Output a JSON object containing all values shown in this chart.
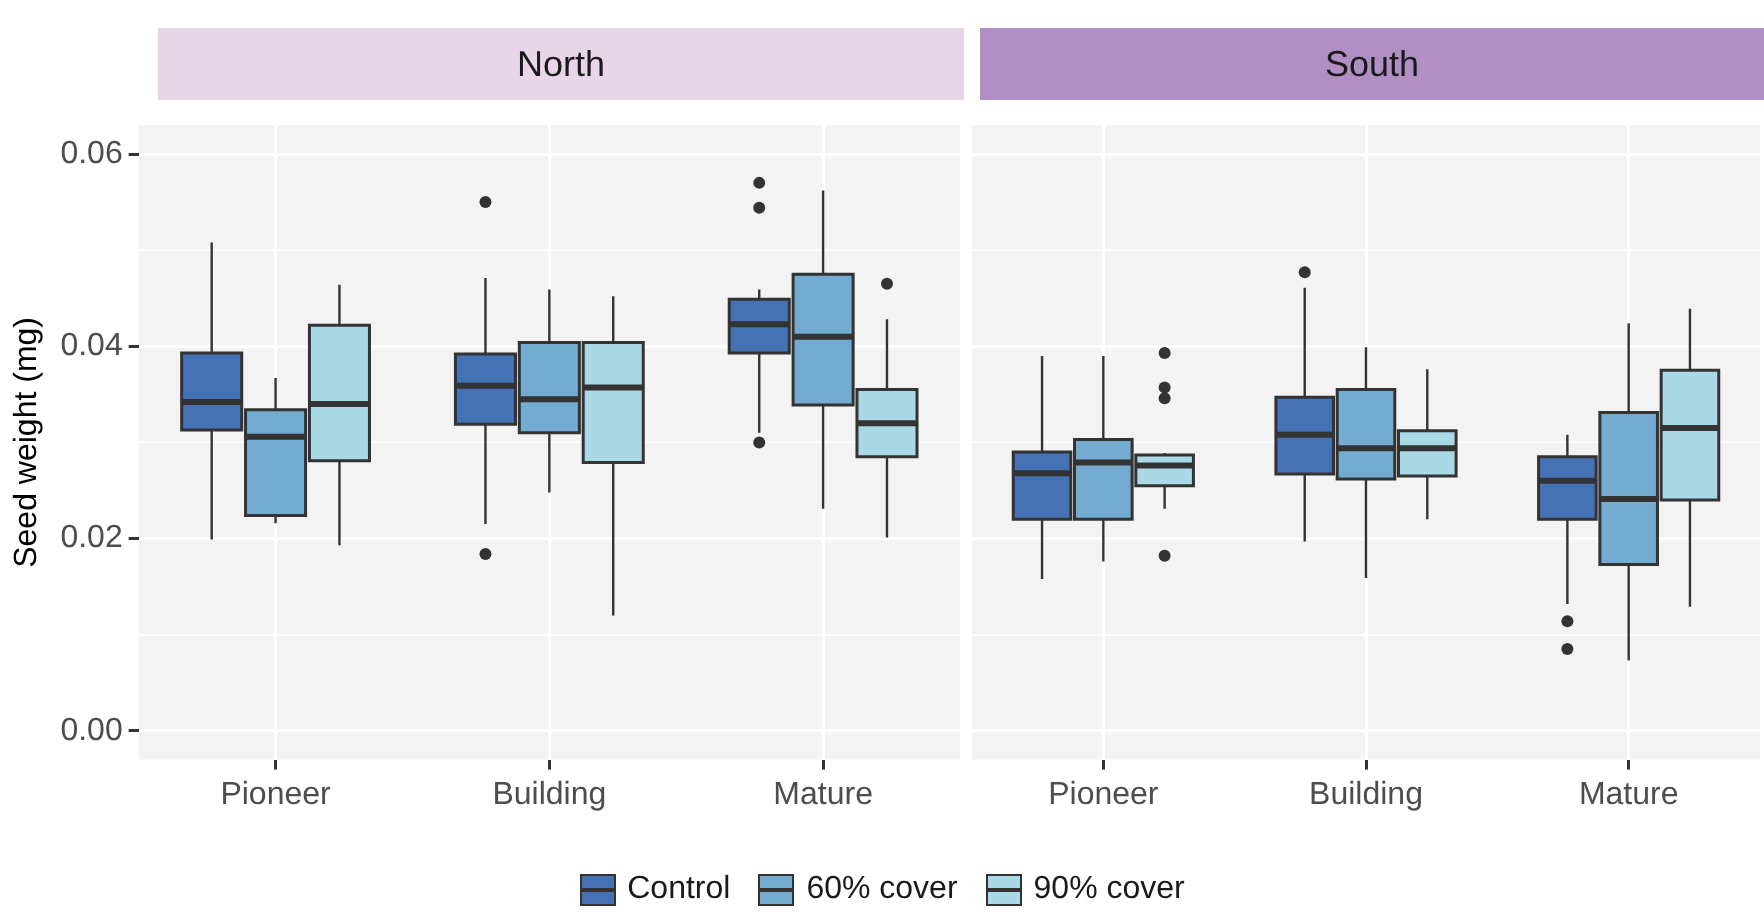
{
  "chart_data": [
    {
      "type": "box",
      "title": "North",
      "ylabel": "Seed weight (mg)",
      "categories": [
        "Pioneer",
        "Building",
        "Mature"
      ],
      "ylim": [
        -0.003,
        0.063
      ],
      "yticks": [
        {
          "value": 0,
          "label": "0.00"
        },
        {
          "value": 0.01,
          "label": null
        },
        0.02,
        {
          "value": 0.03,
          "label": null
        },
        0.04,
        {
          "value": 0.05,
          "label": null
        },
        0.06
      ],
      "grid": true,
      "legend": "bottom",
      "series": [
        {
          "name": "Control",
          "color": "#4472b4",
          "boxes": [
            {
              "low": 0.0199,
              "q1": 0.0313,
              "median": 0.0342,
              "q3": 0.0393,
              "high": 0.0508
            },
            {
              "low": 0.0215,
              "q1": 0.0319,
              "median": 0.0359,
              "q3": 0.0392,
              "high": 0.0471,
              "outliers": [
                0.055,
                0.0184
              ]
            },
            {
              "low": 0.031,
              "q1": 0.0393,
              "median": 0.0423,
              "q3": 0.0449,
              "high": 0.0459,
              "outliers": [
                0.057,
                0.0544,
                0.03
              ]
            }
          ]
        },
        {
          "name": "60% cover",
          "color": "#74abd1",
          "boxes": [
            {
              "low": 0.0216,
              "q1": 0.0224,
              "median": 0.0306,
              "q3": 0.0334,
              "high": 0.0367
            },
            {
              "low": 0.0248,
              "q1": 0.031,
              "median": 0.0345,
              "q3": 0.0404,
              "high": 0.0459
            },
            {
              "low": 0.0231,
              "q1": 0.0339,
              "median": 0.041,
              "q3": 0.0475,
              "high": 0.0562
            }
          ]
        },
        {
          "name": "90% cover",
          "color": "#a9d8e7",
          "boxes": [
            {
              "low": 0.0193,
              "q1": 0.0281,
              "median": 0.034,
              "q3": 0.0422,
              "high": 0.0464
            },
            {
              "low": 0.012,
              "q1": 0.0279,
              "median": 0.0357,
              "q3": 0.0404,
              "high": 0.0452
            },
            {
              "low": 0.0201,
              "q1": 0.0285,
              "median": 0.032,
              "q3": 0.0355,
              "high": 0.0428,
              "outliers": [
                0.0465
              ]
            }
          ]
        }
      ]
    },
    {
      "type": "box",
      "title": "South",
      "categories": [
        "Pioneer",
        "Building",
        "Mature"
      ],
      "ylim": [
        -0.003,
        0.063
      ],
      "yticks": [
        0,
        {
          "value": 0.01,
          "label": null
        },
        0.02,
        {
          "value": 0.03,
          "label": null
        },
        0.04,
        {
          "value": 0.05,
          "label": null
        },
        0.06
      ],
      "grid": true,
      "tick_labels": "x",
      "series": [
        {
          "color": "#4472b4",
          "boxes": [
            {
              "low": 0.0158,
              "q1": 0.022,
              "median": 0.0268,
              "q3": 0.029,
              "high": 0.039
            },
            {
              "low": 0.0197,
              "q1": 0.0267,
              "median": 0.0308,
              "q3": 0.0347,
              "high": 0.0461,
              "outliers": [
                0.0477
              ]
            },
            {
              "low": 0.0132,
              "q1": 0.022,
              "median": 0.026,
              "q3": 0.0285,
              "high": 0.0308,
              "outliers": [
                0.0114,
                0.0085
              ]
            }
          ]
        },
        {
          "color": "#74abd1",
          "boxes": [
            {
              "low": 0.0176,
              "q1": 0.022,
              "median": 0.0279,
              "q3": 0.0303,
              "high": 0.039
            },
            {
              "low": 0.0159,
              "q1": 0.0262,
              "median": 0.0294,
              "q3": 0.0355,
              "high": 0.0399
            },
            {
              "low": 0.0073,
              "q1": 0.0173,
              "median": 0.0241,
              "q3": 0.0331,
              "high": 0.0424
            }
          ]
        },
        {
          "color": "#a9d8e7",
          "boxes": [
            {
              "low": 0.0231,
              "q1": 0.0255,
              "median": 0.0276,
              "q3": 0.0287,
              "high": 0.0289,
              "outliers": [
                0.0393,
                0.0357,
                0.0346,
                0.0182
              ]
            },
            {
              "low": 0.022,
              "q1": 0.0265,
              "median": 0.0294,
              "q3": 0.0312,
              "high": 0.0376
            },
            {
              "low": 0.0129,
              "q1": 0.024,
              "median": 0.0315,
              "q3": 0.0375,
              "high": 0.0439
            }
          ]
        }
      ]
    }
  ]
}
